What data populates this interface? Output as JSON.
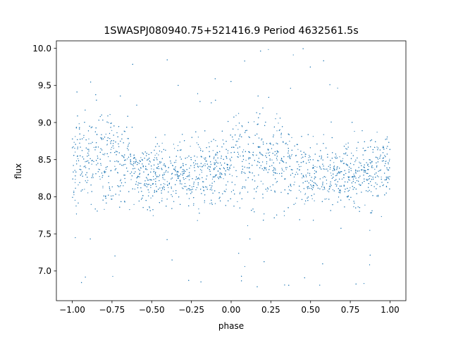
{
  "chart_data": {
    "type": "scatter",
    "title": "1SWASPJ080940.75+521416.9 Period 4632561.5s",
    "xlabel": "phase",
    "ylabel": "flux",
    "xlim": [
      -1.1,
      1.1
    ],
    "ylim": [
      6.6,
      10.1
    ],
    "x_ticks": [
      -1.0,
      -0.75,
      -0.5,
      -0.25,
      0.0,
      0.25,
      0.5,
      0.75,
      1.0
    ],
    "x_tick_labels": [
      "−1.00",
      "−0.75",
      "−0.50",
      "−0.25",
      "0.00",
      "0.25",
      "0.50",
      "0.75",
      "1.00"
    ],
    "y_ticks": [
      7.0,
      7.5,
      8.0,
      8.5,
      9.0,
      9.5,
      10.0
    ],
    "y_tick_labels": [
      "7.0",
      "7.5",
      "8.0",
      "8.5",
      "9.0",
      "9.5",
      "10.0"
    ],
    "grid": false,
    "marker_color": "#1f77b4",
    "phase_range": [
      -1.0,
      1.0
    ],
    "baseline_flux": 8.4,
    "typical_scatter": 0.25,
    "flux_range": [
      6.75,
      10.05
    ],
    "series": [
      {
        "profile_phase": [
          -1.0,
          -0.95,
          -0.9,
          -0.85,
          -0.8,
          -0.75,
          -0.7,
          -0.65,
          -0.6,
          -0.55,
          -0.5,
          -0.45,
          -0.4,
          -0.35,
          -0.3,
          -0.25,
          -0.2,
          -0.15,
          -0.1,
          -0.05,
          0.0,
          0.05,
          0.1,
          0.15,
          0.2,
          0.25,
          0.3,
          0.35,
          0.4,
          0.45,
          0.5,
          0.55,
          0.6,
          0.65,
          0.7,
          0.75,
          0.8,
          0.85,
          0.9,
          0.95,
          1.0
        ],
        "profile_median_flux": [
          8.4,
          8.55,
          8.5,
          8.55,
          8.5,
          8.55,
          8.5,
          8.45,
          8.35,
          8.3,
          8.3,
          8.3,
          8.3,
          8.3,
          8.3,
          8.3,
          8.35,
          8.35,
          8.35,
          8.4,
          8.4,
          8.55,
          8.5,
          8.55,
          8.5,
          8.55,
          8.5,
          8.45,
          8.35,
          8.3,
          8.3,
          8.3,
          8.3,
          8.3,
          8.3,
          8.3,
          8.35,
          8.35,
          8.35,
          8.4,
          8.4
        ]
      }
    ]
  }
}
